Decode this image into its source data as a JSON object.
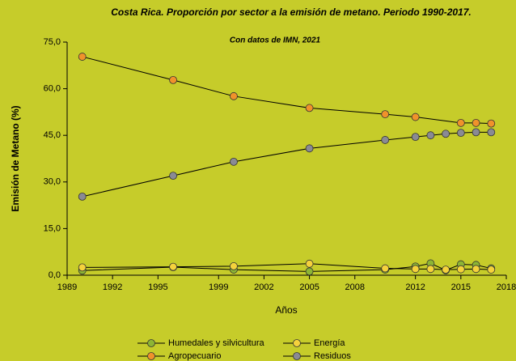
{
  "chart_data": {
    "type": "line",
    "title": "Costa Rica. Proporción por sector a la emisión de metano. Periodo 1990-2017.",
    "subtitle": "Con datos de IMN, 2021",
    "x_label": "Años",
    "y_label": "Emisión de Metano (%)",
    "xlim": [
      1989,
      2018
    ],
    "xticks": [
      1989,
      1992,
      1995,
      1999,
      2002,
      2005,
      2008,
      2012,
      2015,
      2018
    ],
    "ylim": [
      0,
      75
    ],
    "yticks": [
      {
        "value": 0,
        "label": "0,0"
      },
      {
        "value": 15,
        "label": "15,0"
      },
      {
        "value": 30,
        "label": "30,0"
      },
      {
        "value": 45,
        "label": "45,0"
      },
      {
        "value": 60,
        "label": "60,0"
      },
      {
        "value": 75,
        "label": "75,0"
      }
    ],
    "grid": false,
    "legend": "bottom",
    "series": [
      {
        "name": "Humedales y silvicultura",
        "color": "#8db534",
        "x": [
          1990,
          1996,
          2000,
          2005,
          2010,
          2012,
          2013,
          2014,
          2015,
          2016,
          2017
        ],
        "values": [
          1.5,
          2.6,
          1.8,
          1.2,
          1.8,
          2.8,
          3.8,
          1.6,
          3.5,
          3.3,
          2.2
        ]
      },
      {
        "name": "Energía",
        "color": "#f5d23c",
        "x": [
          1990,
          1996,
          2000,
          2005,
          2010,
          2012,
          2013,
          2014,
          2015,
          2016,
          2017
        ],
        "values": [
          2.5,
          2.7,
          2.9,
          3.7,
          2.2,
          2.0,
          2.0,
          1.8,
          1.9,
          2.0,
          1.8
        ]
      },
      {
        "name": "Agropecuario",
        "color": "#f0922b",
        "x": [
          1990,
          1996,
          2000,
          2005,
          2010,
          2012,
          2015,
          2016,
          2017
        ],
        "values": [
          70.3,
          62.8,
          57.6,
          53.8,
          51.8,
          50.9,
          49.0,
          49.0,
          48.8
        ]
      },
      {
        "name": "Residuos",
        "color": "#8a8a94",
        "x": [
          1990,
          1996,
          2000,
          2005,
          2010,
          2012,
          2013,
          2014,
          2015,
          2016,
          2017
        ],
        "values": [
          25.3,
          32.0,
          36.5,
          40.8,
          43.5,
          44.5,
          45.0,
          45.5,
          45.8,
          46.0,
          46.0
        ]
      }
    ]
  }
}
